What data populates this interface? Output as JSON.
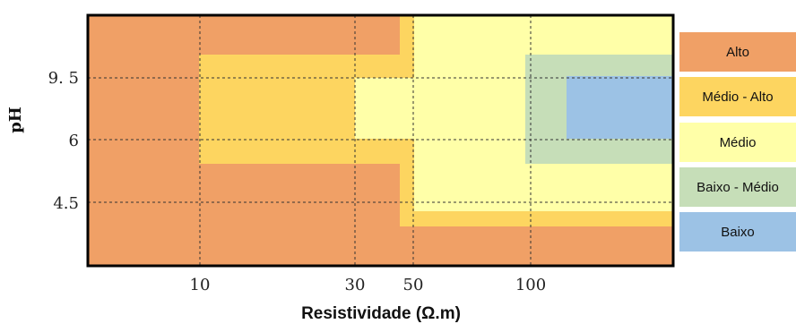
{
  "chart_data": {
    "type": "heatmap",
    "title": "",
    "xlabel": "Resistividade (Ω.m)",
    "ylabel": "pH",
    "x_ticks": [
      "10",
      "30",
      "50",
      "100"
    ],
    "y_ticks": [
      "9. 5",
      "6",
      "4.5"
    ],
    "grid": true,
    "legend_position": "right",
    "categories": [
      {
        "name": "Alto",
        "color": "#F0A066"
      },
      {
        "name": "Médio - Alto",
        "color": "#FDD560"
      },
      {
        "name": "Médio",
        "color": "#FFFFA8"
      },
      {
        "name": "Baixo - Médio",
        "color": "#C6DEB8"
      },
      {
        "name": "Baixo",
        "color": "#9CC2E5"
      }
    ],
    "classification": [
      {
        "level": "Alto",
        "rule": "Resistividade < 10, any pH; or pH outside the inner bands"
      },
      {
        "level": "Médio - Alto",
        "rule": "10 < Resistividade < 50, 5.5 < pH < 10"
      },
      {
        "level": "Médio",
        "rule": "30 < Resistividade < 100, 6 < pH < 9.5; or Resistividade > 50, 4 < pH < 11"
      },
      {
        "level": "Baixo - Médio",
        "rule": "Resistividade > 100, 5.5 < pH < 10"
      },
      {
        "level": "Baixo",
        "rule": "Resistividade > 120, 6 < pH < 9.5"
      }
    ]
  }
}
